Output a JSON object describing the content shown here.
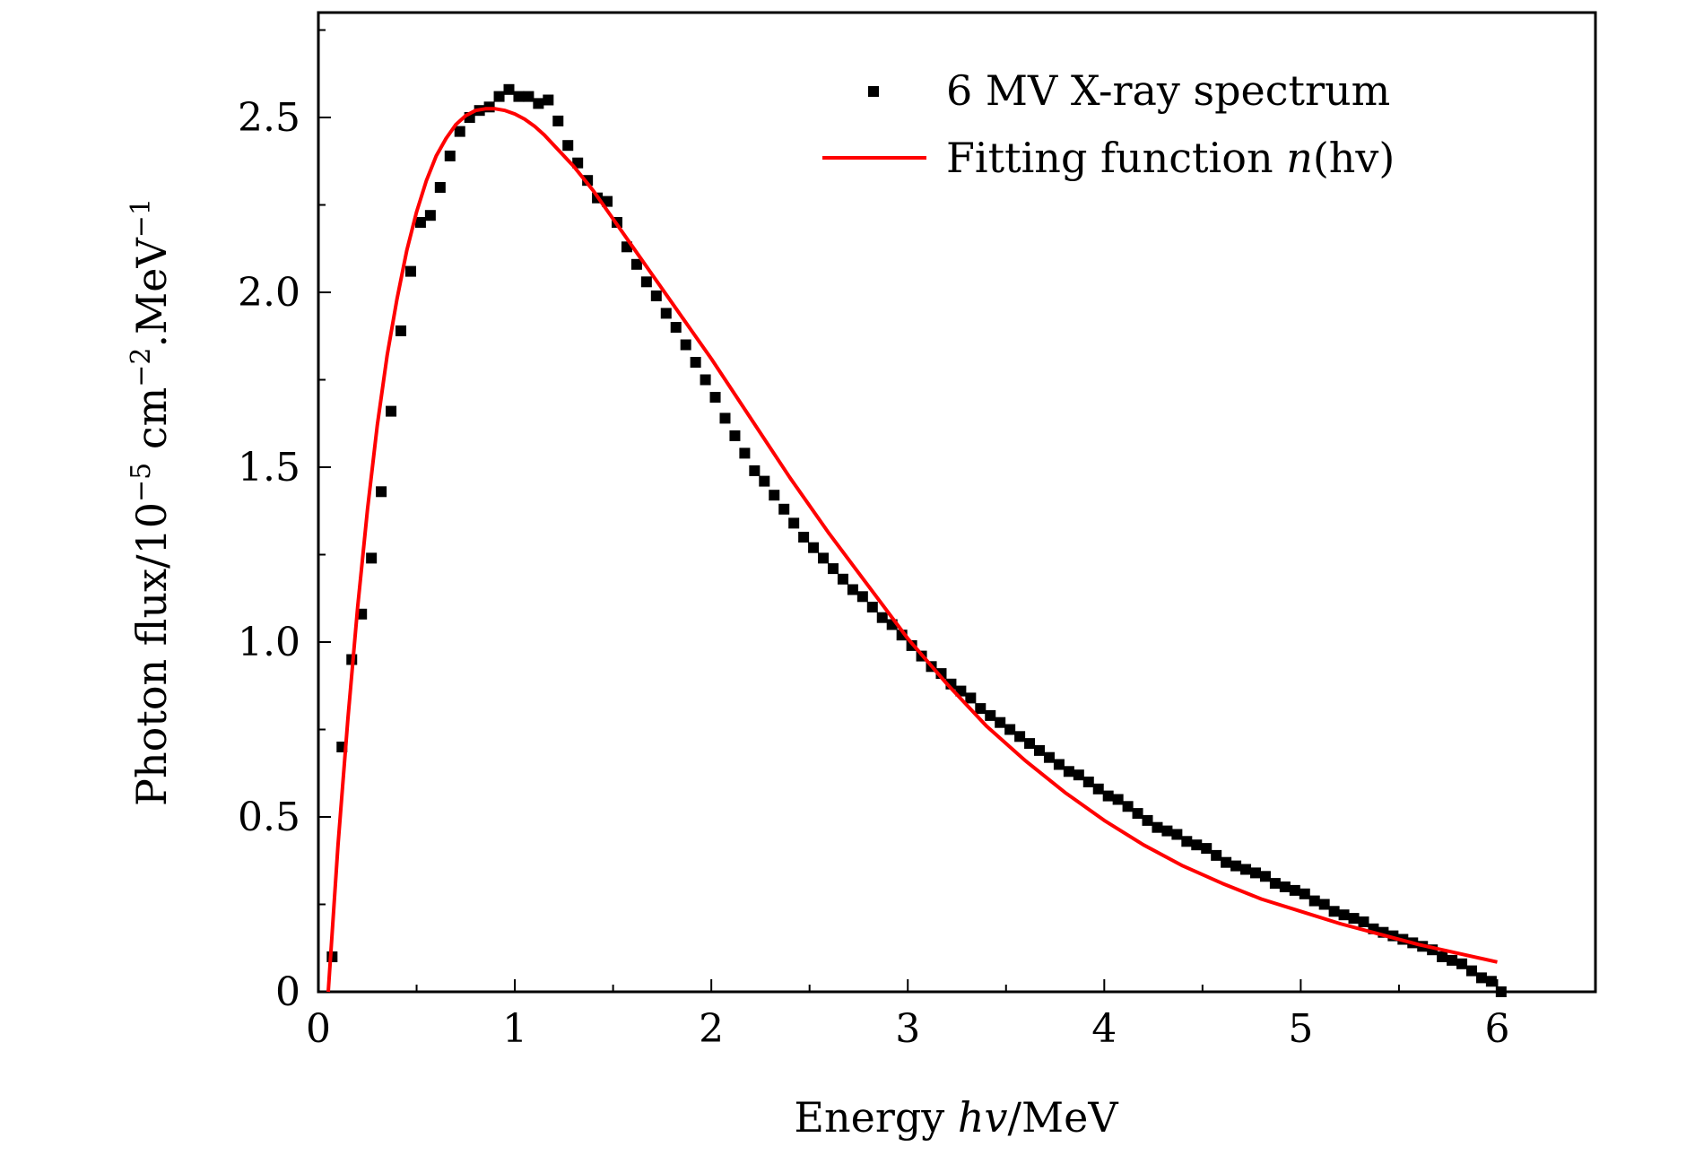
{
  "chart_data": {
    "type": "scatter",
    "title": "",
    "xlabel": {
      "prefix": "Energy ",
      "italic": "hv",
      "suffix": "/MeV"
    },
    "ylabel": {
      "main": "Photon flux/10",
      "sup1": "−5",
      "mid": " cm",
      "sup2": "−2",
      "end": ".MeV",
      "sup3": "−1"
    },
    "xlim": [
      0,
      6.5
    ],
    "ylim": [
      0,
      2.8
    ],
    "x_ticks": [
      "0",
      "1",
      "2",
      "3",
      "4",
      "5",
      "6"
    ],
    "y_ticks": [
      "0",
      "0.5",
      "1.0",
      "1.5",
      "2.0",
      "2.5"
    ],
    "grid": false,
    "legend_position": "top-right",
    "series": [
      {
        "name": "6 MV X-ray spectrum",
        "kind": "scatter",
        "color": "#000000",
        "x": [
          0.07,
          0.12,
          0.17,
          0.22,
          0.27,
          0.32,
          0.37,
          0.42,
          0.47,
          0.52,
          0.57,
          0.62,
          0.67,
          0.72,
          0.77,
          0.82,
          0.87,
          0.92,
          0.97,
          1.02,
          1.07,
          1.12,
          1.17,
          1.22,
          1.27,
          1.32,
          1.37,
          1.42,
          1.47,
          1.52,
          1.57,
          1.62,
          1.67,
          1.72,
          1.77,
          1.82,
          1.87,
          1.92,
          1.97,
          2.02,
          2.07,
          2.12,
          2.17,
          2.22,
          2.27,
          2.32,
          2.37,
          2.42,
          2.47,
          2.52,
          2.57,
          2.62,
          2.67,
          2.72,
          2.77,
          2.82,
          2.87,
          2.92,
          2.97,
          3.02,
          3.07,
          3.12,
          3.17,
          3.22,
          3.27,
          3.32,
          3.37,
          3.42,
          3.47,
          3.52,
          3.57,
          3.62,
          3.67,
          3.72,
          3.77,
          3.82,
          3.87,
          3.92,
          3.97,
          4.02,
          4.07,
          4.12,
          4.17,
          4.22,
          4.27,
          4.32,
          4.37,
          4.42,
          4.47,
          4.52,
          4.57,
          4.62,
          4.67,
          4.72,
          4.77,
          4.82,
          4.87,
          4.92,
          4.97,
          5.02,
          5.07,
          5.12,
          5.17,
          5.22,
          5.27,
          5.32,
          5.37,
          5.42,
          5.47,
          5.52,
          5.57,
          5.62,
          5.67,
          5.72,
          5.77,
          5.82,
          5.87,
          5.92,
          5.97,
          6.02
        ],
        "y": [
          0.1,
          0.7,
          0.95,
          1.08,
          1.24,
          1.43,
          1.66,
          1.89,
          2.06,
          2.2,
          2.22,
          2.3,
          2.39,
          2.46,
          2.5,
          2.52,
          2.53,
          2.56,
          2.58,
          2.56,
          2.56,
          2.54,
          2.55,
          2.49,
          2.42,
          2.37,
          2.32,
          2.27,
          2.26,
          2.2,
          2.13,
          2.08,
          2.03,
          1.99,
          1.94,
          1.9,
          1.85,
          1.8,
          1.75,
          1.7,
          1.64,
          1.59,
          1.54,
          1.49,
          1.46,
          1.42,
          1.38,
          1.34,
          1.3,
          1.27,
          1.24,
          1.21,
          1.18,
          1.15,
          1.13,
          1.1,
          1.07,
          1.05,
          1.02,
          0.99,
          0.96,
          0.93,
          0.91,
          0.88,
          0.86,
          0.84,
          0.81,
          0.79,
          0.77,
          0.75,
          0.73,
          0.71,
          0.69,
          0.67,
          0.65,
          0.63,
          0.62,
          0.6,
          0.58,
          0.56,
          0.55,
          0.53,
          0.51,
          0.49,
          0.47,
          0.46,
          0.45,
          0.43,
          0.42,
          0.41,
          0.39,
          0.37,
          0.36,
          0.35,
          0.34,
          0.33,
          0.31,
          0.3,
          0.29,
          0.28,
          0.26,
          0.25,
          0.23,
          0.22,
          0.21,
          0.2,
          0.18,
          0.17,
          0.16,
          0.15,
          0.14,
          0.13,
          0.12,
          0.1,
          0.09,
          0.08,
          0.06,
          0.04,
          0.03,
          0.0
        ]
      },
      {
        "name": "Fitting function ",
        "name_italic": "n",
        "name_suffix": "(hv)",
        "kind": "line",
        "color": "#ff0000",
        "x": [
          0.05,
          0.1,
          0.15,
          0.2,
          0.25,
          0.3,
          0.35,
          0.4,
          0.45,
          0.5,
          0.55,
          0.6,
          0.65,
          0.7,
          0.75,
          0.8,
          0.85,
          0.9,
          0.95,
          1.0,
          1.05,
          1.1,
          1.15,
          1.2,
          1.3,
          1.4,
          1.5,
          1.6,
          1.7,
          1.8,
          1.9,
          2.0,
          2.2,
          2.4,
          2.6,
          2.8,
          3.0,
          3.2,
          3.4,
          3.6,
          3.8,
          4.0,
          4.2,
          4.4,
          4.6,
          4.8,
          5.0,
          5.2,
          5.4,
          5.6,
          5.8,
          6.0
        ],
        "y": [
          0.0,
          0.42,
          0.78,
          1.1,
          1.38,
          1.62,
          1.82,
          1.98,
          2.12,
          2.23,
          2.32,
          2.39,
          2.44,
          2.48,
          2.505,
          2.52,
          2.525,
          2.525,
          2.52,
          2.51,
          2.495,
          2.475,
          2.45,
          2.42,
          2.36,
          2.29,
          2.21,
          2.13,
          2.05,
          1.97,
          1.89,
          1.81,
          1.64,
          1.47,
          1.31,
          1.16,
          1.01,
          0.88,
          0.76,
          0.66,
          0.57,
          0.49,
          0.42,
          0.36,
          0.31,
          0.265,
          0.23,
          0.195,
          0.165,
          0.135,
          0.11,
          0.085
        ]
      }
    ]
  }
}
